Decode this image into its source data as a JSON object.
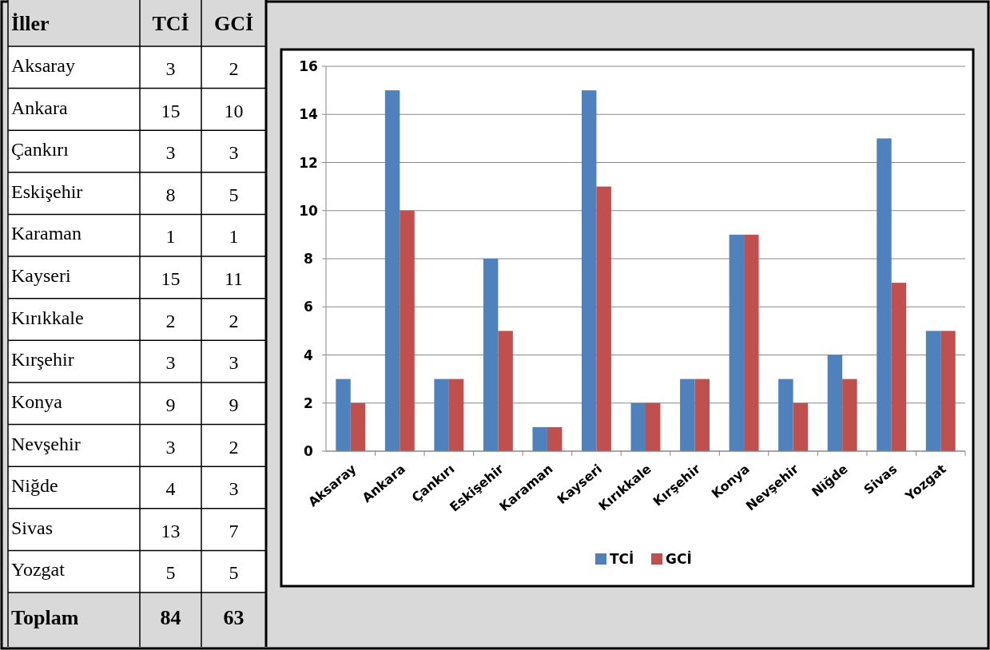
{
  "chart_data": [
    {
      "type": "other",
      "annotations": [
        "İller",
        "Toplam",
        "84",
        "63"
      ],
      "data_labels": true,
      "categories": [
        "Aksaray",
        "Ankara",
        "Çankırı",
        "Eskişehir",
        "Karaman",
        "Kayseri",
        "Kırıkkale",
        "Kırşehir",
        "Konya",
        "Nevşehir",
        "Niğde",
        "Sivas",
        "Yozgat"
      ],
      "series": [
        {
          "name": "TCİ",
          "values": [
            3,
            15,
            3,
            8,
            1,
            15,
            2,
            3,
            9,
            3,
            4,
            13,
            5
          ]
        },
        {
          "name": "GCİ",
          "values": [
            2,
            10,
            3,
            5,
            1,
            11,
            2,
            3,
            9,
            2,
            3,
            7,
            5
          ]
        }
      ]
    },
    {
      "type": "bar",
      "categories": [
        "Aksaray",
        "Ankara",
        "Çankırı",
        "Eskişehir",
        "Karaman",
        "Kayseri",
        "Kırıkkale",
        "Kırşehir",
        "Konya",
        "Nevşehir",
        "Niğde",
        "Sivas",
        "Yozgat"
      ],
      "series": [
        {
          "name": "TCİ",
          "color": "#4f81bd",
          "values": [
            3,
            15,
            3,
            8,
            1,
            15,
            2,
            3,
            9,
            3,
            4,
            13,
            5
          ]
        },
        {
          "name": "GCİ",
          "color": "#c0504d",
          "values": [
            2,
            10,
            3,
            5,
            1,
            11,
            2,
            3,
            9,
            2,
            3,
            7,
            5
          ]
        }
      ],
      "ylim": [
        0,
        16
      ],
      "yticks": [
        0,
        2,
        4,
        6,
        8,
        10,
        12,
        14,
        16
      ],
      "grid": "y",
      "legend": "bottom"
    }
  ]
}
